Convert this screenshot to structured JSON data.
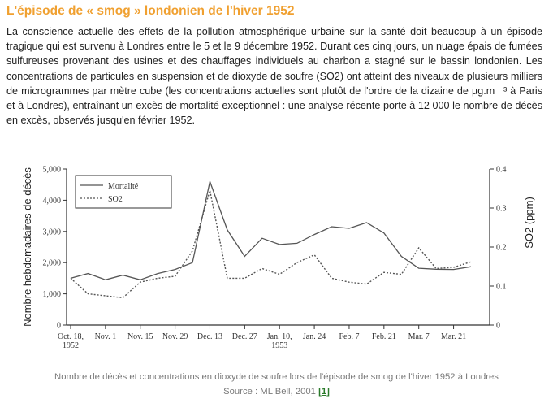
{
  "article": {
    "title": "L'épisode de « smog » londonien de l'hiver 1952",
    "paragraph": "La conscience actuelle des effets de la pollution atmosphérique urbaine sur la santé doit beaucoup à un épisode tragique qui est survenu à Londres entre le 5 et le 9 décembre 1952. Durant ces cinq jours, un nuage épais de fumées sulfureuses provenant des usines et des chauffages individuels au charbon a stagné sur le bassin londonien. Les concentrations de particules en suspension et de dioxyde de soufre (SO2) ont atteint des niveaux de plusieurs milliers de microgrammes par mètre cube (les concentrations actuelles sont plutôt de l'ordre de la dizaine de µg.m⁻ ³ à Paris et à Londres), entraînant un excès de mortalité exceptionnel : une analyse récente porte à 12 000 le nombre de décès en excès, observés jusqu'en février 1952."
  },
  "caption": {
    "line1": "Nombre de décès et concentrations en dioxyde de soufre lors de l'épisode de smog de l'hiver 1952 à Londres",
    "source": "Source : ML Bell, 2001 ",
    "ref": "[1]"
  },
  "chart_data": {
    "type": "line",
    "ylabel": "Nombre hebdomadaires de décès",
    "y2label": "SO2 (ppm)",
    "ylim": [
      0,
      5000
    ],
    "y2lim": [
      0,
      0.4
    ],
    "yticks": [
      "0",
      "1,000",
      "2,000",
      "3,000",
      "4,000",
      "5,000"
    ],
    "y2ticks": [
      "0",
      "0.1",
      "0.2",
      "0.3",
      "0.4"
    ],
    "x_ticks": [
      "Oct. 18,",
      "Nov. 1",
      "Nov. 15",
      "Nov. 29",
      "Dec. 13",
      "Dec. 27",
      "Jan. 10,",
      "Jan. 24",
      "Feb. 7",
      "Feb. 21",
      "Mar. 7",
      "Mar. 21"
    ],
    "x_tick_sub": {
      "0": "1952",
      "6": "1953"
    },
    "legend_position": "top-left",
    "series": [
      {
        "name": "Mortalité",
        "axis": "left",
        "style": "solid",
        "x": [
          0,
          1,
          2,
          3,
          4,
          5,
          6,
          7,
          8,
          9,
          10,
          11,
          12,
          13,
          14,
          15,
          16,
          17,
          18,
          19,
          20,
          21,
          22,
          23
        ],
        "values": [
          1500,
          1650,
          1450,
          1600,
          1450,
          1650,
          1780,
          2000,
          4600,
          3050,
          2200,
          2780,
          2580,
          2620,
          2900,
          3150,
          3100,
          3280,
          2950,
          2200,
          1820,
          1790,
          1780,
          1870
        ]
      },
      {
        "name": "SO2",
        "axis": "right",
        "style": "dotted",
        "x": [
          0,
          1,
          2,
          3,
          4,
          5,
          6,
          7,
          8,
          9,
          10,
          11,
          12,
          13,
          14,
          15,
          16,
          17,
          18,
          19,
          20,
          21,
          22,
          23
        ],
        "values": [
          0.12,
          0.08,
          0.075,
          0.07,
          0.11,
          0.12,
          0.125,
          0.19,
          0.345,
          0.12,
          0.12,
          0.145,
          0.13,
          0.16,
          0.18,
          0.12,
          0.11,
          0.105,
          0.135,
          0.13,
          0.198,
          0.145,
          0.148,
          0.162
        ]
      }
    ]
  }
}
